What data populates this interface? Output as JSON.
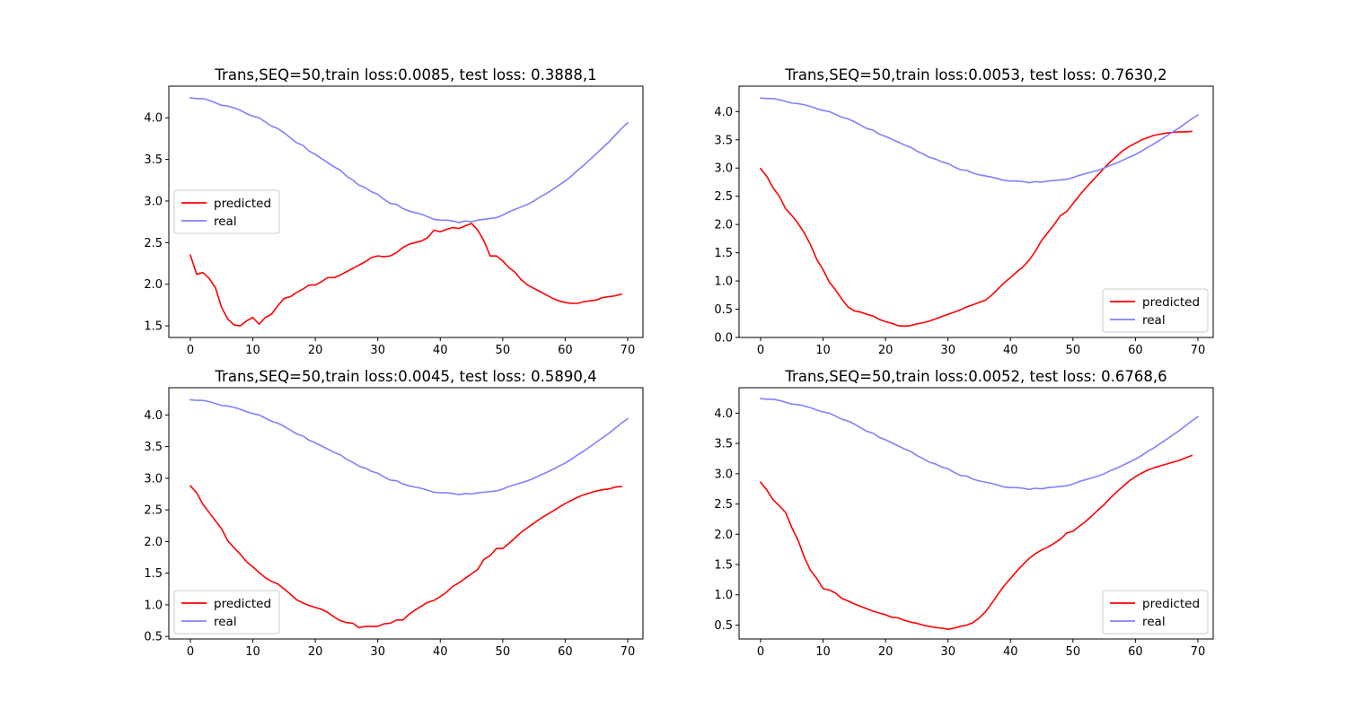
{
  "figure": {
    "colors": {
      "predicted": "#ff0000",
      "real": "#8080ff",
      "axes": "#000000",
      "legend_border": "#cccccc"
    }
  },
  "chart_data": [
    {
      "type": "line",
      "title": "Trans,SEQ=50,train loss:0.0085, test loss: 0.3888,1",
      "xlabel": "",
      "ylabel": "",
      "xlim": [
        -3.45,
        72.45
      ],
      "ylim": [
        1.36,
        4.38
      ],
      "xticks": [
        0,
        10,
        20,
        30,
        40,
        50,
        60,
        70
      ],
      "yticks": [
        1.5,
        2.0,
        2.5,
        3.0,
        3.5,
        4.0
      ],
      "xtick_labels": [
        "0",
        "10",
        "20",
        "30",
        "40",
        "50",
        "60",
        "70"
      ],
      "ytick_labels": [
        "1.5",
        "2.0",
        "2.5",
        "3.0",
        "3.5",
        "4.0"
      ],
      "legend": {
        "placement": "center-left",
        "entries": [
          "predicted",
          "real"
        ]
      },
      "series": [
        {
          "name": "predicted",
          "color": "#ff0000",
          "x_start": 0,
          "values": [
            2.35,
            2.12,
            2.14,
            2.07,
            1.96,
            1.72,
            1.58,
            1.51,
            1.5,
            1.56,
            1.6,
            1.52,
            1.6,
            1.64,
            1.74,
            1.83,
            1.85,
            1.9,
            1.94,
            1.99,
            1.99,
            2.03,
            2.08,
            2.08,
            2.11,
            2.15,
            2.19,
            2.23,
            2.27,
            2.32,
            2.34,
            2.33,
            2.34,
            2.38,
            2.44,
            2.48,
            2.5,
            2.52,
            2.56,
            2.65,
            2.63,
            2.66,
            2.68,
            2.67,
            2.7,
            2.73,
            2.65,
            2.52,
            2.34,
            2.34,
            2.28,
            2.2,
            2.14,
            2.05,
            1.99,
            1.95,
            1.91,
            1.87,
            1.83,
            1.8,
            1.78,
            1.77,
            1.77,
            1.79,
            1.8,
            1.81,
            1.84,
            1.85,
            1.86,
            1.88
          ]
        },
        {
          "name": "real",
          "color": "#8080ff",
          "x_start": 0,
          "values": [
            4.24,
            4.23,
            4.23,
            4.21,
            4.18,
            4.15,
            4.14,
            4.12,
            4.09,
            4.05,
            4.02,
            4.0,
            3.95,
            3.9,
            3.87,
            3.82,
            3.76,
            3.7,
            3.67,
            3.6,
            3.56,
            3.51,
            3.46,
            3.41,
            3.37,
            3.3,
            3.25,
            3.19,
            3.16,
            3.11,
            3.08,
            3.02,
            2.97,
            2.96,
            2.91,
            2.88,
            2.86,
            2.84,
            2.81,
            2.78,
            2.77,
            2.77,
            2.76,
            2.74,
            2.76,
            2.75,
            2.77,
            2.78,
            2.79,
            2.8,
            2.83,
            2.87,
            2.9,
            2.93,
            2.96,
            3.0,
            3.05,
            3.09,
            3.14,
            3.19,
            3.24,
            3.3,
            3.37,
            3.43,
            3.5,
            3.57,
            3.64,
            3.71,
            3.79,
            3.87,
            3.94
          ]
        }
      ]
    },
    {
      "type": "line",
      "title": "Trans,SEQ=50,train loss:0.0053, test loss: 0.7630,2",
      "xlabel": "",
      "ylabel": "",
      "xlim": [
        -3.45,
        72.45
      ],
      "ylim": [
        0.0,
        4.45
      ],
      "xticks": [
        0,
        10,
        20,
        30,
        40,
        50,
        60,
        70
      ],
      "yticks": [
        0.0,
        0.5,
        1.0,
        1.5,
        2.0,
        2.5,
        3.0,
        3.5,
        4.0
      ],
      "xtick_labels": [
        "0",
        "10",
        "20",
        "30",
        "40",
        "50",
        "60",
        "70"
      ],
      "ytick_labels": [
        "0.0",
        "0.5",
        "1.0",
        "1.5",
        "2.0",
        "2.5",
        "3.0",
        "3.5",
        "4.0"
      ],
      "legend": {
        "placement": "lower-right",
        "entries": [
          "predicted",
          "real"
        ]
      },
      "series": [
        {
          "name": "predicted",
          "color": "#ff0000",
          "x_start": 0,
          "values": [
            2.99,
            2.85,
            2.65,
            2.5,
            2.28,
            2.16,
            2.02,
            1.85,
            1.64,
            1.38,
            1.2,
            0.98,
            0.84,
            0.68,
            0.54,
            0.47,
            0.45,
            0.41,
            0.38,
            0.32,
            0.28,
            0.25,
            0.21,
            0.2,
            0.21,
            0.24,
            0.26,
            0.29,
            0.33,
            0.37,
            0.41,
            0.45,
            0.49,
            0.54,
            0.58,
            0.62,
            0.66,
            0.75,
            0.86,
            0.97,
            1.06,
            1.16,
            1.25,
            1.37,
            1.53,
            1.72,
            1.86,
            2.0,
            2.16,
            2.23,
            2.37,
            2.51,
            2.64,
            2.76,
            2.88,
            3.0,
            3.11,
            3.21,
            3.31,
            3.38,
            3.44,
            3.5,
            3.54,
            3.58,
            3.6,
            3.62,
            3.63,
            3.64,
            3.64,
            3.65
          ]
        },
        {
          "name": "real",
          "color": "#8080ff",
          "x_start": 0,
          "values": [
            4.24,
            4.23,
            4.23,
            4.21,
            4.18,
            4.15,
            4.14,
            4.12,
            4.09,
            4.05,
            4.02,
            4.0,
            3.95,
            3.9,
            3.87,
            3.82,
            3.76,
            3.7,
            3.67,
            3.6,
            3.56,
            3.51,
            3.46,
            3.41,
            3.37,
            3.3,
            3.25,
            3.19,
            3.16,
            3.11,
            3.08,
            3.02,
            2.97,
            2.96,
            2.91,
            2.88,
            2.86,
            2.84,
            2.81,
            2.78,
            2.77,
            2.77,
            2.76,
            2.74,
            2.76,
            2.75,
            2.77,
            2.78,
            2.79,
            2.8,
            2.83,
            2.87,
            2.9,
            2.93,
            2.96,
            3.0,
            3.05,
            3.09,
            3.14,
            3.19,
            3.24,
            3.3,
            3.37,
            3.43,
            3.5,
            3.57,
            3.64,
            3.71,
            3.79,
            3.87,
            3.94
          ]
        }
      ]
    },
    {
      "type": "line",
      "title": "Trans,SEQ=50,train loss:0.0045, test loss: 0.5890,4",
      "xlabel": "",
      "ylabel": "",
      "xlim": [
        -3.45,
        72.45
      ],
      "ylim": [
        0.46,
        4.43
      ],
      "xticks": [
        0,
        10,
        20,
        30,
        40,
        50,
        60,
        70
      ],
      "yticks": [
        0.5,
        1.0,
        1.5,
        2.0,
        2.5,
        3.0,
        3.5,
        4.0
      ],
      "xtick_labels": [
        "0",
        "10",
        "20",
        "30",
        "40",
        "50",
        "60",
        "70"
      ],
      "ytick_labels": [
        "0.5",
        "1.0",
        "1.5",
        "2.0",
        "2.5",
        "3.0",
        "3.5",
        "4.0"
      ],
      "legend": {
        "placement": "lower-left",
        "entries": [
          "predicted",
          "real"
        ]
      },
      "series": [
        {
          "name": "predicted",
          "color": "#ff0000",
          "x_start": 0,
          "values": [
            2.88,
            2.77,
            2.59,
            2.46,
            2.33,
            2.2,
            2.01,
            1.9,
            1.8,
            1.68,
            1.6,
            1.51,
            1.43,
            1.37,
            1.33,
            1.25,
            1.17,
            1.08,
            1.03,
            0.99,
            0.96,
            0.93,
            0.88,
            0.81,
            0.75,
            0.72,
            0.71,
            0.64,
            0.66,
            0.66,
            0.66,
            0.7,
            0.71,
            0.76,
            0.76,
            0.85,
            0.92,
            0.98,
            1.04,
            1.07,
            1.13,
            1.2,
            1.29,
            1.35,
            1.42,
            1.49,
            1.56,
            1.72,
            1.78,
            1.89,
            1.89,
            1.97,
            2.06,
            2.15,
            2.22,
            2.29,
            2.36,
            2.42,
            2.48,
            2.54,
            2.6,
            2.65,
            2.7,
            2.74,
            2.77,
            2.8,
            2.82,
            2.83,
            2.86,
            2.87
          ]
        },
        {
          "name": "real",
          "color": "#8080ff",
          "x_start": 0,
          "values": [
            4.24,
            4.23,
            4.23,
            4.21,
            4.18,
            4.15,
            4.14,
            4.12,
            4.09,
            4.05,
            4.02,
            4.0,
            3.95,
            3.9,
            3.87,
            3.82,
            3.76,
            3.7,
            3.67,
            3.6,
            3.56,
            3.51,
            3.46,
            3.41,
            3.37,
            3.3,
            3.25,
            3.19,
            3.16,
            3.11,
            3.08,
            3.02,
            2.97,
            2.96,
            2.91,
            2.88,
            2.86,
            2.84,
            2.81,
            2.78,
            2.77,
            2.77,
            2.76,
            2.74,
            2.76,
            2.75,
            2.77,
            2.78,
            2.79,
            2.8,
            2.83,
            2.87,
            2.9,
            2.93,
            2.96,
            3.0,
            3.05,
            3.09,
            3.14,
            3.19,
            3.24,
            3.3,
            3.37,
            3.43,
            3.5,
            3.57,
            3.64,
            3.71,
            3.79,
            3.87,
            3.94
          ]
        }
      ]
    },
    {
      "type": "line",
      "title": "Trans,SEQ=50,train loss:0.0052, test loss: 0.6768,6",
      "xlabel": "",
      "ylabel": "",
      "xlim": [
        -3.45,
        72.45
      ],
      "ylim": [
        0.27,
        4.42
      ],
      "xticks": [
        0,
        10,
        20,
        30,
        40,
        50,
        60,
        70
      ],
      "yticks": [
        0.5,
        1.0,
        1.5,
        2.0,
        2.5,
        3.0,
        3.5,
        4.0
      ],
      "xtick_labels": [
        "0",
        "10",
        "20",
        "30",
        "40",
        "50",
        "60",
        "70"
      ],
      "ytick_labels": [
        "0.5",
        "1.0",
        "1.5",
        "2.0",
        "2.5",
        "3.0",
        "3.5",
        "4.0"
      ],
      "legend": {
        "placement": "lower-right",
        "entries": [
          "predicted",
          "real"
        ]
      },
      "series": [
        {
          "name": "predicted",
          "color": "#ff0000",
          "x_start": 0,
          "values": [
            2.86,
            2.73,
            2.57,
            2.47,
            2.36,
            2.11,
            1.9,
            1.62,
            1.4,
            1.27,
            1.1,
            1.08,
            1.03,
            0.94,
            0.9,
            0.85,
            0.81,
            0.77,
            0.73,
            0.7,
            0.67,
            0.63,
            0.62,
            0.58,
            0.55,
            0.53,
            0.5,
            0.48,
            0.46,
            0.45,
            0.43,
            0.45,
            0.48,
            0.5,
            0.54,
            0.62,
            0.72,
            0.86,
            1.01,
            1.15,
            1.27,
            1.39,
            1.5,
            1.6,
            1.68,
            1.74,
            1.79,
            1.85,
            1.92,
            2.02,
            2.05,
            2.13,
            2.21,
            2.3,
            2.4,
            2.49,
            2.6,
            2.7,
            2.79,
            2.88,
            2.95,
            3.01,
            3.06,
            3.1,
            3.13,
            3.16,
            3.19,
            3.22,
            3.26,
            3.3
          ]
        },
        {
          "name": "real",
          "color": "#8080ff",
          "x_start": 0,
          "values": [
            4.24,
            4.23,
            4.23,
            4.21,
            4.18,
            4.15,
            4.14,
            4.12,
            4.09,
            4.05,
            4.02,
            4.0,
            3.95,
            3.9,
            3.87,
            3.82,
            3.76,
            3.7,
            3.67,
            3.6,
            3.56,
            3.51,
            3.46,
            3.41,
            3.37,
            3.3,
            3.25,
            3.19,
            3.16,
            3.11,
            3.08,
            3.02,
            2.97,
            2.96,
            2.91,
            2.88,
            2.86,
            2.84,
            2.81,
            2.78,
            2.77,
            2.77,
            2.76,
            2.74,
            2.76,
            2.75,
            2.77,
            2.78,
            2.79,
            2.8,
            2.83,
            2.87,
            2.9,
            2.93,
            2.96,
            3.0,
            3.05,
            3.09,
            3.14,
            3.19,
            3.24,
            3.3,
            3.37,
            3.43,
            3.5,
            3.57,
            3.64,
            3.71,
            3.79,
            3.87,
            3.94
          ]
        }
      ]
    }
  ]
}
